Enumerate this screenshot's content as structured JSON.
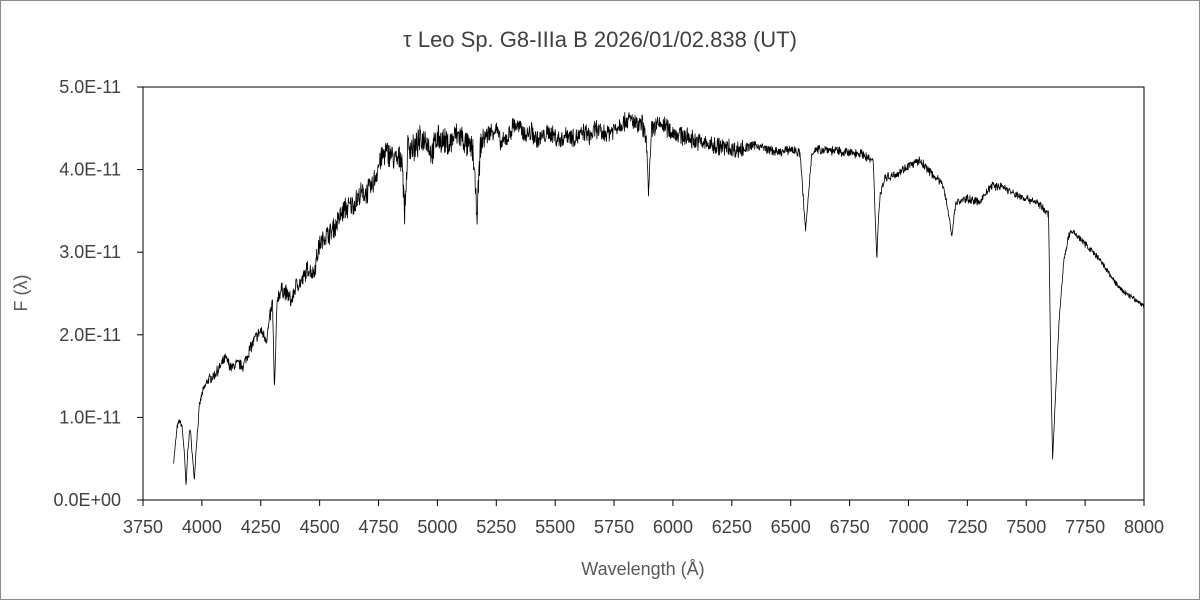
{
  "chart_data": {
    "type": "line",
    "title": "τ Leo    Sp. G8-IIIa B    2026/01/02.838 (UT)",
    "xlabel": "Wavelength (Å)",
    "ylabel": "F (λ)",
    "xlim": [
      3750,
      8000
    ],
    "ylim": [
      0,
      5e-11
    ],
    "x_ticks": [
      3750,
      4000,
      4250,
      4500,
      4750,
      5000,
      5250,
      5500,
      5750,
      6000,
      6250,
      6500,
      6750,
      7000,
      7250,
      7500,
      7750,
      8000
    ],
    "x_tick_labels": [
      "3750",
      "4000",
      "4250",
      "4500",
      "4750",
      "5000",
      "5250",
      "5500",
      "5750",
      "6000",
      "6250",
      "6500",
      "6750",
      "7000",
      "7250",
      "7500",
      "7750",
      "8000"
    ],
    "y_ticks": [
      0,
      1e-11,
      2e-11,
      3e-11,
      4e-11,
      5e-11
    ],
    "y_tick_labels": [
      "0.0E+00",
      "1.0E-11",
      "2.0E-11",
      "3.0E-11",
      "4.0E-11",
      "5.0E-11"
    ],
    "grid": false,
    "legend": "none",
    "line_color": "#000000",
    "series": [
      {
        "x": [
          3880,
          3895,
          3905,
          3915,
          3925,
          3933,
          3940,
          3950,
          3958,
          3968,
          3975,
          3990,
          4000,
          4025,
          4050,
          4075,
          4100,
          4125,
          4150,
          4175,
          4200,
          4225,
          4250,
          4275,
          4300,
          4308,
          4320,
          4340,
          4360,
          4380,
          4400,
          4425,
          4450,
          4475,
          4500,
          4525,
          4550,
          4575,
          4600,
          4625,
          4650,
          4675,
          4700,
          4725,
          4750,
          4775,
          4800,
          4825,
          4850,
          4861,
          4875,
          4900,
          4925,
          4950,
          4975,
          5000,
          5025,
          5050,
          5075,
          5100,
          5125,
          5150,
          5168,
          5183,
          5200,
          5225,
          5250,
          5270,
          5300,
          5325,
          5350,
          5375,
          5400,
          5425,
          5450,
          5475,
          5500,
          5525,
          5550,
          5575,
          5600,
          5625,
          5650,
          5675,
          5700,
          5725,
          5750,
          5775,
          5800,
          5825,
          5850,
          5870,
          5890,
          5896,
          5910,
          5950,
          6000,
          6050,
          6100,
          6150,
          6200,
          6250,
          6300,
          6350,
          6400,
          6450,
          6500,
          6540,
          6563,
          6590,
          6650,
          6700,
          6750,
          6800,
          6850,
          6866,
          6870,
          6880,
          6900,
          6950,
          7000,
          7050,
          7100,
          7150,
          7185,
          7200,
          7250,
          7300,
          7350,
          7400,
          7450,
          7500,
          7550,
          7580,
          7595,
          7605,
          7612,
          7625,
          7640,
          7660,
          7680,
          7700,
          7750,
          7800,
          7850,
          7900,
          7950,
          8000
        ],
        "y": [
          4.6e-12,
          8.8e-12,
          9.6e-12,
          9e-12,
          6e-12,
          1.6e-12,
          6e-12,
          8.8e-12,
          6e-12,
          2.4e-12,
          6e-12,
          1.15e-11,
          1.28e-11,
          1.45e-11,
          1.5e-11,
          1.6e-11,
          1.72e-11,
          1.6e-11,
          1.65e-11,
          1.62e-11,
          1.8e-11,
          1.95e-11,
          2.05e-11,
          1.95e-11,
          2.4e-11,
          1.3e-11,
          2.45e-11,
          2.55e-11,
          2.5e-11,
          2.4e-11,
          2.6e-11,
          2.65e-11,
          2.8e-11,
          2.75e-11,
          3.1e-11,
          3.2e-11,
          3.25e-11,
          3.35e-11,
          3.5e-11,
          3.55e-11,
          3.6e-11,
          3.7e-11,
          3.72e-11,
          3.8e-11,
          4.05e-11,
          4.2e-11,
          4.2e-11,
          4.1e-11,
          4.15e-11,
          3.45e-11,
          4.3e-11,
          4.25e-11,
          4.35e-11,
          4.4e-11,
          4.2e-11,
          4.38e-11,
          4.35e-11,
          4.3e-11,
          4.42e-11,
          4.4e-11,
          4.3e-11,
          4.25e-11,
          3.45e-11,
          4.3e-11,
          4.4e-11,
          4.45e-11,
          4.5e-11,
          4.3e-11,
          4.4e-11,
          4.55e-11,
          4.5e-11,
          4.42e-11,
          4.45e-11,
          4.35e-11,
          4.4e-11,
          4.45e-11,
          4.4e-11,
          4.35e-11,
          4.45e-11,
          4.38e-11,
          4.4e-11,
          4.45e-11,
          4.4e-11,
          4.5e-11,
          4.42e-11,
          4.45e-11,
          4.5e-11,
          4.55e-11,
          4.6e-11,
          4.6e-11,
          4.5e-11,
          4.55e-11,
          4.3e-11,
          3.65e-11,
          4.5e-11,
          4.55e-11,
          4.45e-11,
          4.4e-11,
          4.35e-11,
          4.3e-11,
          4.28e-11,
          4.25e-11,
          4.25e-11,
          4.3e-11,
          4.25e-11,
          4.2e-11,
          4.25e-11,
          4.2e-11,
          3.25e-11,
          4.22e-11,
          4.25e-11,
          4.22e-11,
          4.2e-11,
          4.2e-11,
          4.1e-11,
          2.9e-11,
          3.3e-11,
          3.7e-11,
          3.9e-11,
          3.95e-11,
          4.05e-11,
          4.1e-11,
          3.95e-11,
          3.8e-11,
          3.2e-11,
          3.6e-11,
          3.65e-11,
          3.6e-11,
          3.8e-11,
          3.8e-11,
          3.7e-11,
          3.65e-11,
          3.6e-11,
          3.5e-11,
          3.45e-11,
          1.5e-11,
          5e-12,
          1.3e-11,
          2.2e-11,
          2.9e-11,
          3.2e-11,
          3.25e-11,
          3.1e-11,
          2.95e-11,
          2.75e-11,
          2.55e-11,
          2.45e-11,
          2.35e-11
        ]
      }
    ]
  }
}
